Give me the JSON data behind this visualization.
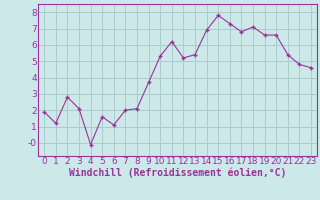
{
  "x": [
    0,
    1,
    2,
    3,
    4,
    5,
    6,
    7,
    8,
    9,
    10,
    11,
    12,
    13,
    14,
    15,
    16,
    17,
    18,
    19,
    20,
    21,
    22,
    23
  ],
  "y": [
    1.9,
    1.2,
    2.8,
    2.1,
    -0.1,
    1.6,
    1.1,
    2.0,
    2.1,
    3.7,
    5.3,
    6.2,
    5.2,
    5.4,
    6.9,
    7.8,
    7.3,
    6.8,
    7.1,
    6.6,
    6.6,
    5.4,
    4.8,
    4.6
  ],
  "line_color": "#993399",
  "marker": "+",
  "bg_color": "#cce8e8",
  "grid_color": "#aacccc",
  "xlabel": "Windchill (Refroidissement éolien,°C)",
  "ylim": [
    -0.8,
    8.5
  ],
  "xlim": [
    -0.5,
    23.5
  ],
  "yticks": [
    0,
    1,
    2,
    3,
    4,
    5,
    6,
    7,
    8
  ],
  "ytick_labels": [
    "-0",
    "1",
    "2",
    "3",
    "4",
    "5",
    "6",
    "7",
    "8"
  ],
  "xticks": [
    0,
    1,
    2,
    3,
    4,
    5,
    6,
    7,
    8,
    9,
    10,
    11,
    12,
    13,
    14,
    15,
    16,
    17,
    18,
    19,
    20,
    21,
    22,
    23
  ],
  "spine_color": "#993399",
  "xlabel_fontsize": 7,
  "tick_fontsize": 6.5
}
